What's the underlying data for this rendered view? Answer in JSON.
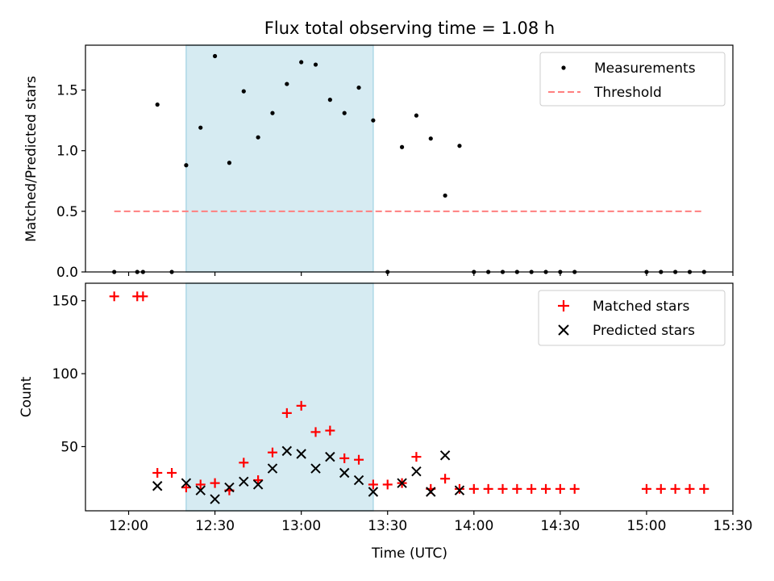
{
  "chart_data": [
    {
      "type": "scatter",
      "title": "Flux total observing time = 1.08 h",
      "ylabel": "Matched/Predicted stars",
      "xlabel": "",
      "xlim": [
        "11:45",
        "15:30"
      ],
      "ylim": [
        0,
        1.87
      ],
      "yticks": [
        "0.0",
        "0.5",
        "1.0",
        "1.5"
      ],
      "shaded_interval": [
        "12:20",
        "12:85"
      ],
      "legend_position": "upper right",
      "series": [
        {
          "name": "Measurements",
          "marker": "dot",
          "color": "#000000",
          "points": [
            [
              "11:55",
              0
            ],
            [
              "12:03",
              0
            ],
            [
              "12:05",
              0
            ],
            [
              "12:10",
              1.38
            ],
            [
              "12:15",
              0
            ],
            [
              "12:20",
              0.88
            ],
            [
              "12:25",
              1.19
            ],
            [
              "12:30",
              1.78
            ],
            [
              "12:35",
              0.9
            ],
            [
              "12:40",
              1.49
            ],
            [
              "12:45",
              1.11
            ],
            [
              "12:50",
              1.31
            ],
            [
              "12:55",
              1.55
            ],
            [
              "13:00",
              1.73
            ],
            [
              "13:05",
              1.71
            ],
            [
              "13:10",
              1.42
            ],
            [
              "13:15",
              1.31
            ],
            [
              "13:20",
              1.52
            ],
            [
              "13:25",
              1.25
            ],
            [
              "13:30",
              0
            ],
            [
              "13:35",
              1.03
            ],
            [
              "13:40",
              1.29
            ],
            [
              "13:45",
              1.1
            ],
            [
              "13:50",
              0.63
            ],
            [
              "13:55",
              1.04
            ],
            [
              "14:00",
              0
            ],
            [
              "14:05",
              0
            ],
            [
              "14:10",
              0
            ],
            [
              "14:15",
              0
            ],
            [
              "14:20",
              0
            ],
            [
              "14:25",
              0
            ],
            [
              "14:30",
              0
            ],
            [
              "14:35",
              0
            ],
            [
              "15:00",
              0
            ],
            [
              "15:05",
              0
            ],
            [
              "15:10",
              0
            ],
            [
              "15:15",
              0
            ],
            [
              "15:20",
              0
            ]
          ]
        },
        {
          "name": "Threshold",
          "marker": "dashed-line",
          "color": "#ff7f7f",
          "points": [
            [
              "11:55",
              0.5
            ],
            [
              "15:20",
              0.5
            ]
          ]
        }
      ]
    },
    {
      "type": "scatter",
      "xlabel": "Time (UTC)",
      "ylabel": "Count",
      "xlim": [
        "11:45",
        "15:30"
      ],
      "ylim": [
        6,
        162
      ],
      "xticks": [
        "12:00",
        "12:30",
        "13:00",
        "13:30",
        "14:00",
        "14:30",
        "15:00",
        "15:30"
      ],
      "yticks": [
        "50",
        "100",
        "150"
      ],
      "legend_position": "upper right",
      "series": [
        {
          "name": "Matched stars",
          "marker": "plus",
          "color": "#ff0000",
          "points": [
            [
              "11:55",
              153
            ],
            [
              "12:03",
              153
            ],
            [
              "12:05",
              153
            ],
            [
              "12:10",
              32
            ],
            [
              "12:15",
              32
            ],
            [
              "12:20",
              22
            ],
            [
              "12:25",
              24
            ],
            [
              "12:30",
              25
            ],
            [
              "12:35",
              20
            ],
            [
              "12:40",
              39
            ],
            [
              "12:45",
              27
            ],
            [
              "12:50",
              46
            ],
            [
              "12:55",
              73
            ],
            [
              "13:00",
              78
            ],
            [
              "13:05",
              60
            ],
            [
              "13:10",
              61
            ],
            [
              "13:15",
              42
            ],
            [
              "13:20",
              41
            ],
            [
              "13:25",
              24
            ],
            [
              "13:30",
              24
            ],
            [
              "13:35",
              25
            ],
            [
              "13:40",
              43
            ],
            [
              "13:45",
              21
            ],
            [
              "13:50",
              28
            ],
            [
              "13:55",
              21
            ],
            [
              "14:00",
              21
            ],
            [
              "14:05",
              21
            ],
            [
              "14:10",
              21
            ],
            [
              "14:15",
              21
            ],
            [
              "14:20",
              21
            ],
            [
              "14:25",
              21
            ],
            [
              "14:30",
              21
            ],
            [
              "14:35",
              21
            ],
            [
              "15:00",
              21
            ],
            [
              "15:05",
              21
            ],
            [
              "15:10",
              21
            ],
            [
              "15:15",
              21
            ],
            [
              "15:20",
              21
            ]
          ]
        },
        {
          "name": "Predicted stars",
          "marker": "x",
          "color": "#000000",
          "points": [
            [
              "12:10",
              23
            ],
            [
              "12:20",
              25
            ],
            [
              "12:25",
              20
            ],
            [
              "12:30",
              14
            ],
            [
              "12:35",
              22
            ],
            [
              "12:40",
              26
            ],
            [
              "12:45",
              24
            ],
            [
              "12:50",
              35
            ],
            [
              "12:55",
              47
            ],
            [
              "13:00",
              45
            ],
            [
              "13:05",
              35
            ],
            [
              "13:10",
              43
            ],
            [
              "13:15",
              32
            ],
            [
              "13:20",
              27
            ],
            [
              "13:25",
              19
            ],
            [
              "13:35",
              25
            ],
            [
              "13:40",
              33
            ],
            [
              "13:45",
              19
            ],
            [
              "13:50",
              44
            ],
            [
              "13:55",
              20
            ]
          ]
        }
      ]
    }
  ]
}
